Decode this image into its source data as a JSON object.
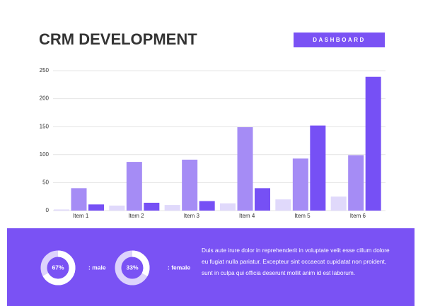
{
  "header": {
    "title": "CRM DEVELOPMENT",
    "button": "DASHBOARD"
  },
  "chart_data": {
    "type": "bar",
    "categories": [
      "Item 1",
      "Item 2",
      "Item 3",
      "Item 4",
      "Item 5",
      "Item 6"
    ],
    "series": [
      {
        "color": "#e0d9fb",
        "values": [
          2,
          9,
          10,
          13,
          20,
          25
        ]
      },
      {
        "color": "#a58cf5",
        "values": [
          40,
          87,
          91,
          149,
          93,
          99
        ]
      },
      {
        "color": "#7650f5",
        "values": [
          11,
          14,
          17,
          40,
          152,
          239
        ]
      }
    ],
    "ylim": [
      0,
      250
    ],
    "yticks": [
      0,
      50,
      100,
      150,
      200,
      250
    ],
    "grid": true
  },
  "donuts": [
    {
      "value": 67,
      "value_label": "67%",
      "label": ": male"
    },
    {
      "value": 33,
      "value_label": "33%",
      "label": ": female"
    }
  ],
  "paragraph": "Duis aute irure dolor in reprehenderit in voluptate velit esse cillum dolore eu fugiat nulla pariatur. Excepteur sint occaecat cupidatat non proident, sunt in culpa qui officia deserunt mollit anim id est laborum."
}
